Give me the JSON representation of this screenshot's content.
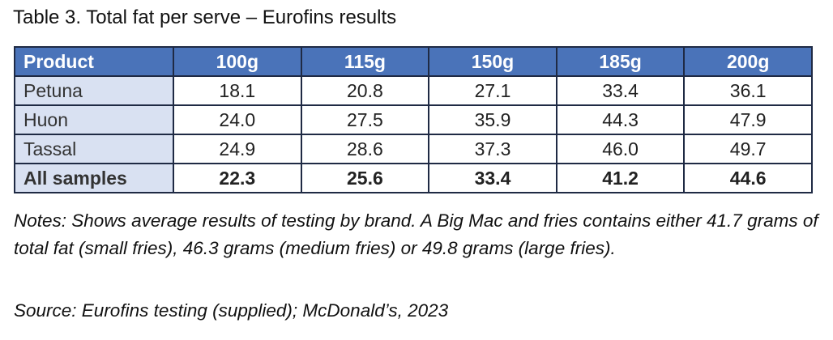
{
  "title": "Table 3. Total fat per serve – Eurofins results",
  "table": {
    "header": [
      "Product",
      "100g",
      "115g",
      "150g",
      "185g",
      "200g"
    ],
    "rows": [
      [
        "Petuna",
        "18.1",
        "20.8",
        "27.1",
        "33.4",
        "36.1"
      ],
      [
        "Huon",
        "24.0",
        "27.5",
        "35.9",
        "44.3",
        "47.9"
      ],
      [
        "Tassal",
        "24.9",
        "28.6",
        "37.3",
        "46.0",
        "49.7"
      ],
      [
        "All samples",
        "22.3",
        "25.6",
        "33.4",
        "41.2",
        "44.6"
      ]
    ]
  },
  "notes": "Notes: Shows average results of testing by brand. A Big Mac and fries contains either 41.7 grams of total fat (small fries), 46.3 grams (medium fries) or 49.8 grams (large fries).",
  "source": "Source: Eurofins testing (supplied); McDonald’s, 2023"
}
